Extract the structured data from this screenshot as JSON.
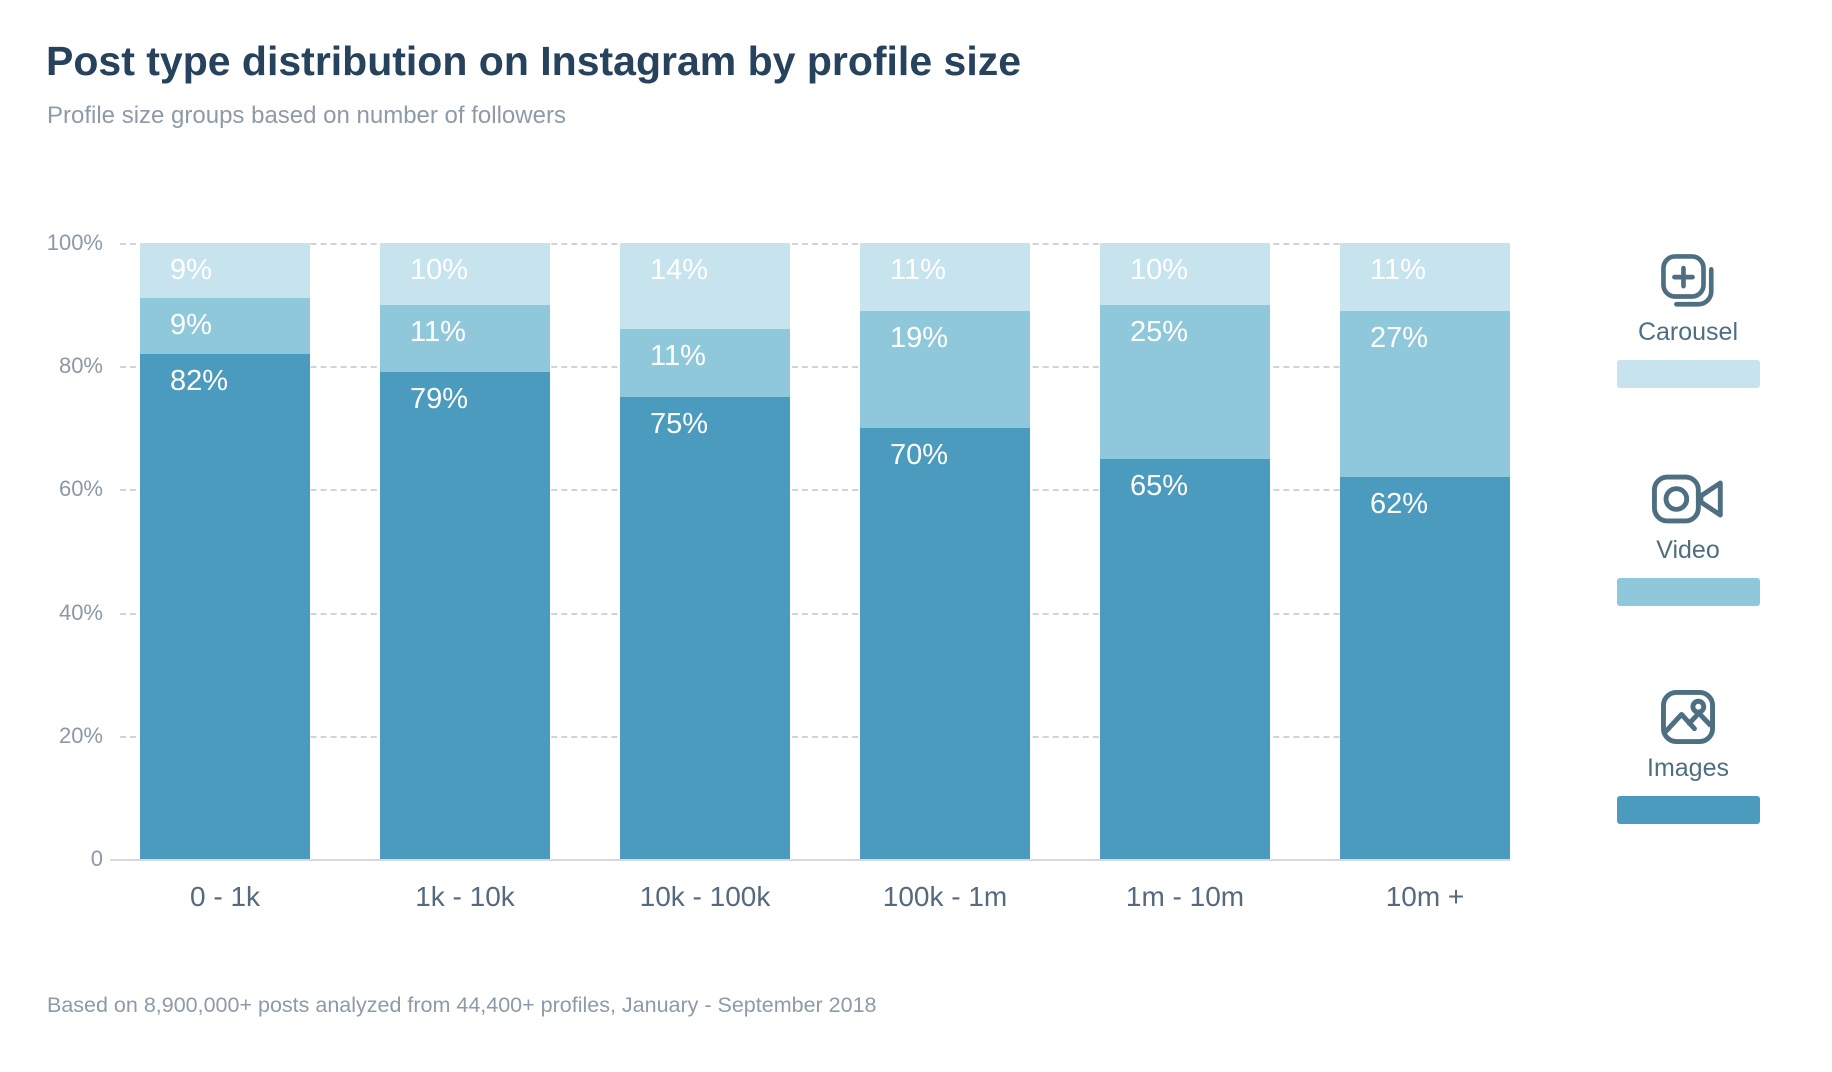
{
  "title": "Post type distribution on Instagram by profile size",
  "subtitle": "Profile size groups based on number of followers",
  "footer": "Based on 8,900,000+ posts analyzed from 44,400+ profiles, January - September 2018",
  "colors": {
    "title_text": "#26425c",
    "muted_text": "#8d9aa8",
    "x_label_text": "#556a7e",
    "y_label_text": "#8c98a6",
    "legend_text": "#4e6e82",
    "grid_line": "#cdd4db",
    "axis_line": "#d7dbdf",
    "bar_label_text": "#ffffff"
  },
  "chart_data": {
    "type": "bar",
    "variant": "stacked-percentage-column",
    "title": "Post type distribution on Instagram by profile size",
    "categories": [
      "0 - 1k",
      "1k - 10k",
      "10k - 100k",
      "100k - 1m",
      "1m - 10m",
      "10m +"
    ],
    "series": [
      {
        "name": "Images",
        "color": "#4a9bbe",
        "values": [
          82,
          79,
          75,
          70,
          65,
          62
        ],
        "labels": [
          "82%",
          "79%",
          "75%",
          "70%",
          "65%",
          "62%"
        ]
      },
      {
        "name": "Video",
        "color": "#8fc8da",
        "values": [
          9,
          11,
          11,
          19,
          25,
          27
        ],
        "labels": [
          "9%",
          "11%",
          "11%",
          "19%",
          "25%",
          "27%"
        ]
      },
      {
        "name": "Carousel",
        "color": "#c7e3ee",
        "values": [
          9,
          10,
          14,
          11,
          10,
          11
        ],
        "labels": [
          "9%",
          "10%",
          "14%",
          "11%",
          "10%",
          "11%"
        ]
      }
    ],
    "stack_order_bottom_to_top": [
      "Images",
      "Video",
      "Carousel"
    ],
    "y_axis": {
      "range": [
        0,
        100
      ],
      "grid": "dashed-horizontal",
      "ticks": [
        {
          "label": "100%",
          "value": 100
        },
        {
          "label": "80%",
          "value": 80
        },
        {
          "label": "60%",
          "value": 60
        },
        {
          "label": "40%",
          "value": 40
        },
        {
          "label": "20%",
          "value": 20
        },
        {
          "label": "0",
          "value": 0
        }
      ]
    },
    "legend": {
      "position": "right",
      "entries": [
        {
          "label": "Carousel",
          "icon": "carousel-icon",
          "series": "Carousel"
        },
        {
          "label": "Video",
          "icon": "video-icon",
          "series": "Video"
        },
        {
          "label": "Images",
          "icon": "images-icon",
          "series": "Images"
        }
      ]
    }
  }
}
